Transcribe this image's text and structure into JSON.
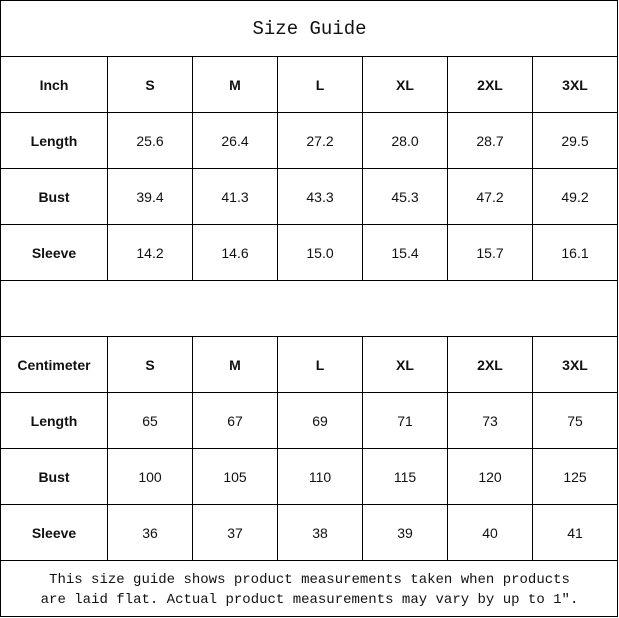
{
  "title": "Size Guide",
  "tables": [
    {
      "header": [
        "Inch",
        "S",
        "M",
        "L",
        "XL",
        "2XL",
        "3XL"
      ],
      "rows": [
        {
          "label": "Length",
          "values": [
            "25.6",
            "26.4",
            "27.2",
            "28.0",
            "28.7",
            "29.5"
          ]
        },
        {
          "label": "Bust",
          "values": [
            "39.4",
            "41.3",
            "43.3",
            "45.3",
            "47.2",
            "49.2"
          ]
        },
        {
          "label": "Sleeve",
          "values": [
            "14.2",
            "14.6",
            "15.0",
            "15.4",
            "15.7",
            "16.1"
          ]
        }
      ]
    },
    {
      "header": [
        "Centimeter",
        "S",
        "M",
        "L",
        "XL",
        "2XL",
        "3XL"
      ],
      "rows": [
        {
          "label": "Length",
          "values": [
            "65",
            "67",
            "69",
            "71",
            "73",
            "75"
          ]
        },
        {
          "label": "Bust",
          "values": [
            "100",
            "105",
            "110",
            "115",
            "120",
            "125"
          ]
        },
        {
          "label": "Sleeve",
          "values": [
            "36",
            "37",
            "38",
            "39",
            "40",
            "41"
          ]
        }
      ]
    }
  ],
  "note": {
    "line1": "This size guide shows product measurements taken when products",
    "line2": "are laid flat. Actual product measurements may vary by up to 1″."
  }
}
